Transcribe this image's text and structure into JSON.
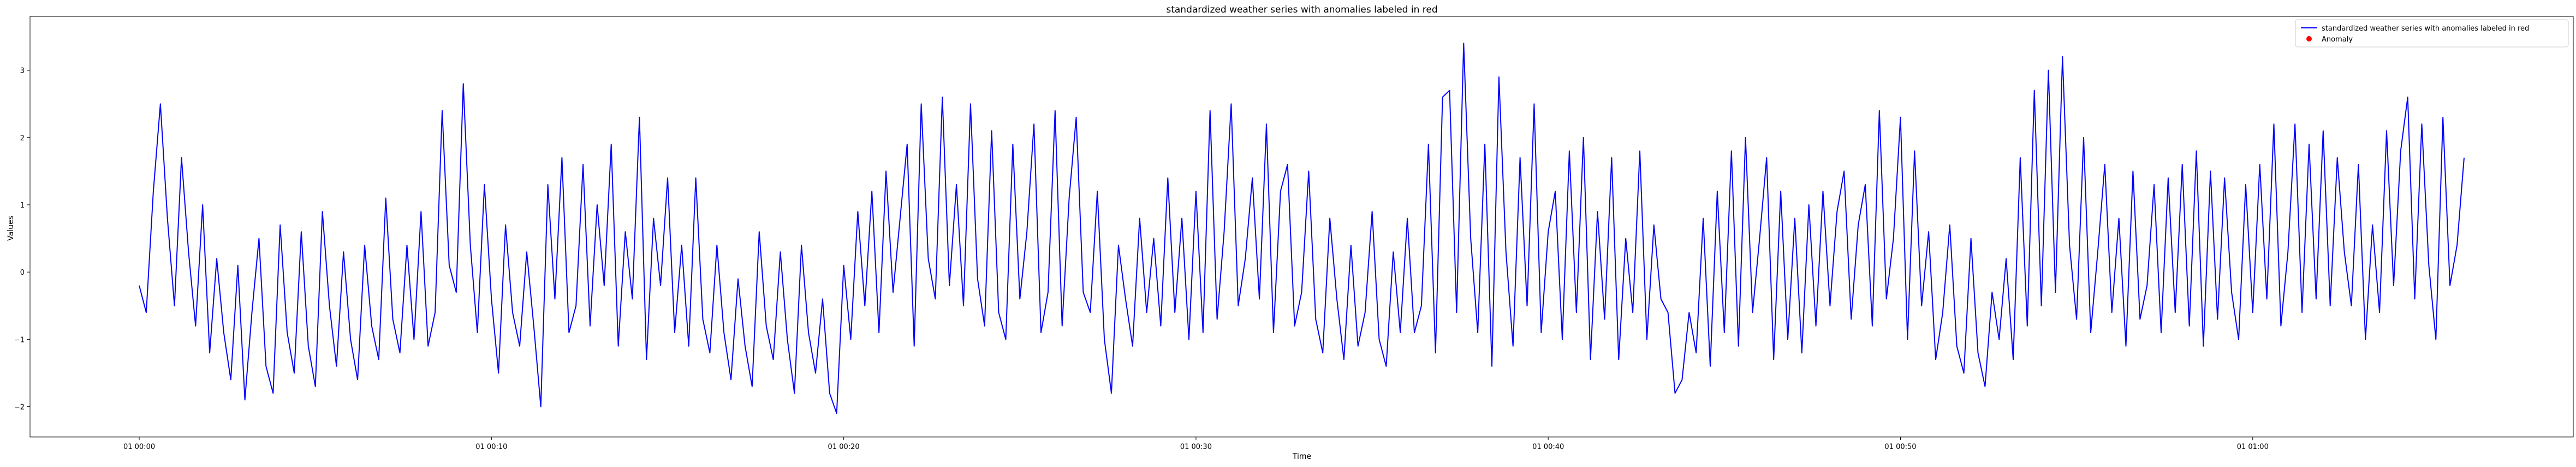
{
  "chart_data": {
    "type": "line",
    "title": "standardized weather series with anomalies labeled in red",
    "xlabel": "Time",
    "ylabel": "Values",
    "xlim": [
      -31,
      691
    ],
    "ylim": [
      -2.45,
      3.8
    ],
    "x_ticks": [
      {
        "value": 0,
        "label": "01 00:00"
      },
      {
        "value": 100,
        "label": "01 00:10"
      },
      {
        "value": 200,
        "label": "01 00:20"
      },
      {
        "value": 300,
        "label": "01 00:30"
      },
      {
        "value": 400,
        "label": "01 00:40"
      },
      {
        "value": 500,
        "label": "01 00:50"
      },
      {
        "value": 600,
        "label": "01 01:00"
      }
    ],
    "y_ticks": [
      -2,
      -1,
      0,
      1,
      2,
      3
    ],
    "legend": {
      "placement": "top-right",
      "entries": [
        {
          "label": "standardized weather series with anomalies labeled in red",
          "marker": "line",
          "color": "#0000ff"
        },
        {
          "label": "Anomaly",
          "marker": "dot",
          "color": "#ff0000"
        }
      ]
    },
    "series": [
      {
        "name": "standardized weather series with anomalies labeled in red",
        "color": "#0000ff",
        "x": [
          0,
          2,
          4,
          6,
          8,
          10,
          12,
          14,
          16,
          18,
          20,
          22,
          24,
          26,
          28,
          30,
          32,
          34,
          36,
          38,
          40,
          42,
          44,
          46,
          48,
          50,
          52,
          54,
          56,
          58,
          60,
          62,
          64,
          66,
          68,
          70,
          72,
          74,
          76,
          78,
          80,
          82,
          84,
          86,
          88,
          90,
          92,
          94,
          96,
          98,
          100,
          102,
          104,
          106,
          108,
          110,
          112,
          114,
          116,
          118,
          120,
          122,
          124,
          126,
          128,
          130,
          132,
          134,
          136,
          138,
          140,
          142,
          144,
          146,
          148,
          150,
          152,
          154,
          156,
          158,
          160,
          162,
          164,
          166,
          168,
          170,
          172,
          174,
          176,
          178,
          180,
          182,
          184,
          186,
          188,
          190,
          192,
          194,
          196,
          198,
          200,
          202,
          204,
          206,
          208,
          210,
          212,
          214,
          216,
          218,
          220,
          222,
          224,
          226,
          228,
          230,
          232,
          234,
          236,
          238,
          240,
          242,
          244,
          246,
          248,
          250,
          252,
          254,
          256,
          258,
          260,
          262,
          264,
          266,
          268,
          270,
          272,
          274,
          276,
          278,
          280,
          282,
          284,
          286,
          288,
          290,
          292,
          294,
          296,
          298,
          300,
          302,
          304,
          306,
          308,
          310,
          312,
          314,
          316,
          318,
          320,
          322,
          324,
          326,
          328,
          330,
          332,
          334,
          336,
          338,
          340,
          342,
          344,
          346,
          348,
          350,
          352,
          354,
          356,
          358,
          360,
          362,
          364,
          366,
          368,
          370,
          372,
          374,
          376,
          378,
          380,
          382,
          384,
          386,
          388,
          390,
          392,
          394,
          396,
          398,
          400,
          402,
          404,
          406,
          408,
          410,
          412,
          414,
          416,
          418,
          420,
          422,
          424,
          426,
          428,
          430,
          432,
          434,
          436,
          438,
          440,
          442,
          444,
          446,
          448,
          450,
          452,
          454,
          456,
          458,
          460,
          462,
          464,
          466,
          468,
          470,
          472,
          474,
          476,
          478,
          480,
          482,
          484,
          486,
          488,
          490,
          492,
          494,
          496,
          498,
          500,
          502,
          504,
          506,
          508,
          510,
          512,
          514,
          516,
          518,
          520,
          522,
          524,
          526,
          528,
          530,
          532,
          534,
          536,
          538,
          540,
          542,
          544,
          546,
          548,
          550,
          552,
          554,
          556,
          558,
          560,
          562,
          564,
          566,
          568,
          570,
          572,
          574,
          576,
          578,
          580,
          582,
          584,
          586,
          588,
          590,
          592,
          594,
          596,
          598,
          600,
          602,
          604,
          606,
          608,
          610,
          612,
          614,
          616,
          618,
          620,
          622,
          624,
          626,
          628,
          630,
          632,
          634,
          636,
          638,
          640,
          642,
          644,
          646,
          648,
          650,
          652,
          654,
          656,
          658,
          660
        ],
        "values": [
          -0.2,
          -0.6,
          1.2,
          2.5,
          0.8,
          -0.5,
          1.7,
          0.3,
          -0.8,
          1.0,
          -1.2,
          0.2,
          -0.9,
          -1.6,
          0.1,
          -1.9,
          -0.6,
          0.5,
          -1.4,
          -1.8,
          0.7,
          -0.9,
          -1.5,
          0.6,
          -1.1,
          -1.7,
          0.9,
          -0.5,
          -1.4,
          0.3,
          -1.0,
          -1.6,
          0.4,
          -0.8,
          -1.3,
          1.1,
          -0.7,
          -1.2,
          0.4,
          -1.0,
          0.9,
          -1.1,
          -0.6,
          2.4,
          0.1,
          -0.3,
          2.8,
          0.4,
          -0.9,
          1.3,
          -0.4,
          -1.5,
          0.7,
          -0.6,
          -1.1,
          0.3,
          -0.8,
          -2.0,
          1.3,
          -0.4,
          1.7,
          -0.9,
          -0.5,
          1.6,
          -0.8,
          1.0,
          -0.2,
          1.9,
          -1.1,
          0.6,
          -0.4,
          2.3,
          -1.3,
          0.8,
          -0.2,
          1.4,
          -0.9,
          0.4,
          -1.1,
          1.4,
          -0.7,
          -1.2,
          0.4,
          -0.9,
          -1.6,
          -0.1,
          -1.1,
          -1.7,
          0.6,
          -0.8,
          -1.3,
          0.3,
          -1.0,
          -1.8,
          0.4,
          -0.9,
          -1.5,
          -0.4,
          -1.8,
          -2.1,
          0.1,
          -1.0,
          0.9,
          -0.5,
          1.2,
          -0.9,
          1.5,
          -0.3,
          0.8,
          1.9,
          -1.1,
          2.5,
          0.2,
          -0.4,
          2.6,
          -0.2,
          1.3,
          -0.5,
          2.5,
          -0.1,
          -0.8,
          2.1,
          -0.6,
          -1.0,
          1.9,
          -0.4,
          0.6,
          2.2,
          -0.9,
          -0.3,
          2.4,
          -0.8,
          1.1,
          2.3,
          -0.3,
          -0.6,
          1.2,
          -1.0,
          -1.8,
          0.4,
          -0.4,
          -1.1,
          0.8,
          -0.6,
          0.5,
          -0.8,
          1.4,
          -0.6,
          0.8,
          -1.0,
          1.2,
          -0.9,
          2.4,
          -0.7,
          0.6,
          2.5,
          -0.5,
          0.2,
          1.4,
          -0.4,
          2.2,
          -0.9,
          1.2,
          1.6,
          -0.8,
          -0.3,
          1.5,
          -0.7,
          -1.2,
          0.8,
          -0.4,
          -1.3,
          0.4,
          -1.1,
          -0.6,
          0.9,
          -1.0,
          -1.4,
          0.3,
          -0.9,
          0.8,
          -0.9,
          -0.5,
          1.9,
          -1.2,
          2.6,
          2.7,
          -0.6,
          3.4,
          0.5,
          -0.9,
          1.9,
          -1.4,
          2.9,
          0.3,
          -1.1,
          1.7,
          -0.5,
          2.5,
          -0.9,
          0.6,
          1.2,
          -1.0,
          1.8,
          -0.6,
          2.0,
          -1.3,
          0.9,
          -0.7,
          1.7,
          -1.3,
          0.5,
          -0.6,
          1.8,
          -1.0,
          0.7,
          -0.4,
          -0.6,
          -1.8,
          -1.6,
          -0.6,
          -1.2,
          0.8,
          -1.4,
          1.2,
          -0.9,
          1.8,
          -1.1,
          2.0,
          -0.6,
          0.5,
          1.7,
          -1.3,
          1.2,
          -1.0,
          0.8,
          -1.2,
          1.0,
          -0.8,
          1.2,
          -0.5,
          0.9,
          1.5,
          -0.7,
          0.7,
          1.3,
          -0.8,
          2.4,
          -0.4,
          0.5,
          2.3,
          -1.0,
          1.8,
          -0.5,
          0.6,
          -1.3,
          -0.6,
          0.7,
          -1.1,
          -1.5,
          0.5,
          -1.2,
          -1.7,
          -0.3,
          -1.0,
          0.2,
          -1.3,
          1.7,
          -0.8,
          2.7,
          -0.5,
          3.0,
          -0.3,
          3.2,
          0.4,
          -0.7,
          2.0,
          -0.9,
          0.3,
          1.6,
          -0.6,
          0.8,
          -1.1,
          1.5,
          -0.7,
          -0.2,
          1.3,
          -0.9,
          1.4,
          -0.6,
          1.6,
          -0.8,
          1.8,
          -1.1,
          1.5,
          -0.7,
          1.4,
          -0.3,
          -1.0,
          1.3,
          -0.6,
          1.6,
          -0.4,
          2.2,
          -0.8,
          0.3,
          2.2,
          -0.6,
          1.9,
          -0.4,
          2.1,
          -0.5,
          1.7,
          0.3,
          -0.5,
          1.6,
          -1.0,
          0.7,
          -0.6,
          2.1,
          -0.2,
          1.8,
          2.6,
          -0.4,
          2.2,
          0.1,
          -1.0,
          2.3,
          -0.2,
          0.4,
          1.7
        ],
        "anomalies": []
      }
    ]
  }
}
